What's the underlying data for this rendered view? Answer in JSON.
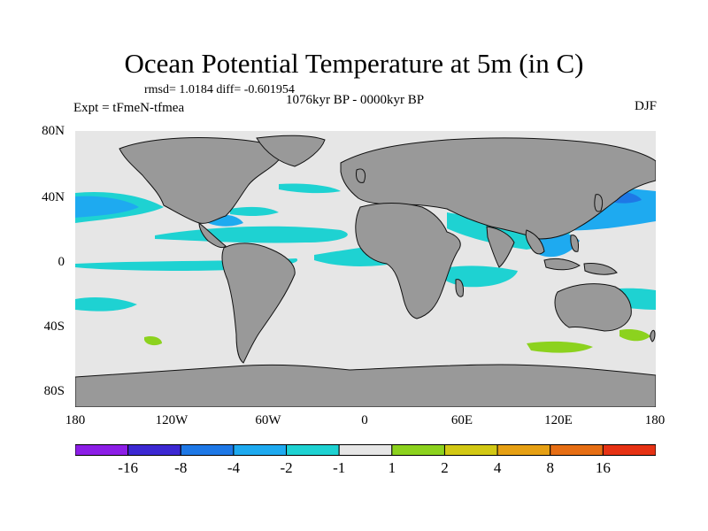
{
  "title": "Ocean Potential Temperature at 5m (in C)",
  "stats": {
    "rmsd_label": "rmsd= 1.0184",
    "diff_label": "diff= -0.601954"
  },
  "time_range": "1076kyr BP - 0000kyr BP",
  "experiment": "Expt = tFmeN-tfmea",
  "season": "DJF",
  "axes": {
    "lat_ticks": [
      "80N",
      "40N",
      "0",
      "40S",
      "80S"
    ],
    "lon_ticks": [
      "180",
      "120W",
      "60W",
      "0",
      "60E",
      "120E",
      "180"
    ]
  },
  "colorbar": {
    "colors": [
      "#8c1ee6",
      "#3c28d2",
      "#1e78e6",
      "#1eaaf0",
      "#1ed2d2",
      "#e6e6e6",
      "#8cd21e",
      "#d2c814",
      "#e6a014",
      "#e66e14",
      "#e63214"
    ],
    "labels": [
      "-16",
      "-8",
      "-4",
      "-2",
      "-1",
      "1",
      "2",
      "4",
      "8",
      "16"
    ]
  },
  "legend_colors": {
    "land": "#999999",
    "no_change": "#e6e6e6"
  }
}
